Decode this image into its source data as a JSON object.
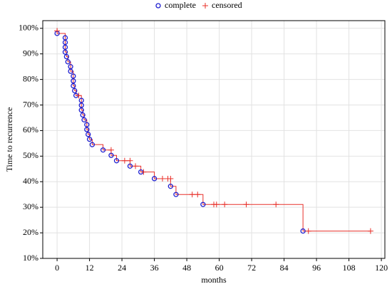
{
  "chart_data": {
    "type": "survival",
    "xlabel": "months",
    "ylabel": "Time to recurrence",
    "xlim": [
      -5.3,
      121.3
    ],
    "ylim": [
      10,
      103
    ],
    "xticks": [
      0,
      12,
      24,
      36,
      48,
      60,
      72,
      84,
      96,
      108,
      120
    ],
    "yticks": [
      {
        "value": 10,
        "label": "10%"
      },
      {
        "value": 20,
        "label": "20%"
      },
      {
        "value": 30,
        "label": "30%"
      },
      {
        "value": 40,
        "label": "40%"
      },
      {
        "value": 50,
        "label": "50%"
      },
      {
        "value": 60,
        "label": "60%"
      },
      {
        "value": 70,
        "label": "70%"
      },
      {
        "value": 80,
        "label": "80%"
      },
      {
        "value": 90,
        "label": "90%"
      },
      {
        "value": 100,
        "label": "100%"
      }
    ],
    "grid": true,
    "curve": {
      "color": "#e8302a",
      "x": [
        0,
        0,
        3,
        3,
        3.5,
        3.5,
        4,
        4,
        5,
        5,
        6,
        6,
        6.5,
        6.5,
        7,
        7,
        9,
        9,
        9.5,
        9.5,
        10,
        10,
        11,
        11,
        11.5,
        11.5,
        12,
        12,
        13,
        13,
        17,
        17,
        20,
        20,
        22,
        22,
        27,
        27,
        31,
        31,
        36,
        36,
        42,
        42,
        44,
        44,
        54,
        54,
        91,
        91,
        116
      ],
      "y": [
        100,
        98,
        98,
        90.7,
        90.7,
        88.9,
        88.9,
        86.9,
        86.9,
        83.2,
        83.2,
        77.5,
        77.5,
        75.6,
        75.6,
        73.7,
        73.7,
        68,
        68,
        66.1,
        66.1,
        64.2,
        64.2,
        60.4,
        60.4,
        58.5,
        58.5,
        56.6,
        56.6,
        54.5,
        54.5,
        52.4,
        52.4,
        50.3,
        50.3,
        48.2,
        48.2,
        46.1,
        46.1,
        43.8,
        43.8,
        41.2,
        41.2,
        38.2,
        38.2,
        35,
        35,
        31.1,
        31.1,
        20.7,
        20.7
      ]
    },
    "series": [
      {
        "name": "complete",
        "marker": "circle",
        "color": "#1f1fd0",
        "x": [
          0,
          3,
          3,
          3,
          3,
          3.5,
          4,
          5,
          5,
          6,
          6,
          6,
          6.5,
          7,
          9,
          9,
          9,
          9.5,
          10,
          11,
          11,
          11.5,
          12,
          13,
          17,
          20,
          22,
          27,
          31,
          36,
          42,
          44,
          54,
          91
        ],
        "values": [
          98,
          96.3,
          94.5,
          92.6,
          90.7,
          88.9,
          86.9,
          85,
          83.2,
          81.3,
          79.4,
          77.5,
          75.6,
          73.7,
          71.8,
          69.9,
          68,
          66.1,
          64.2,
          62.3,
          60.4,
          58.5,
          56.6,
          54.5,
          52.4,
          50.3,
          48.2,
          46.1,
          43.8,
          41.2,
          38.2,
          35,
          31.1,
          20.7
        ]
      },
      {
        "name": "censored",
        "marker": "plus",
        "color": "#e8302a",
        "x": [
          0,
          8,
          20,
          25,
          27,
          29,
          32,
          39,
          41,
          42,
          50,
          52,
          58,
          59,
          62,
          70,
          81,
          93,
          116
        ],
        "values": [
          99,
          73.7,
          52.4,
          48.2,
          48.2,
          46.1,
          43.8,
          41.2,
          41.2,
          41.2,
          35,
          35,
          31.1,
          31.1,
          31.1,
          31.1,
          31.1,
          20.7,
          20.7
        ]
      }
    ]
  }
}
